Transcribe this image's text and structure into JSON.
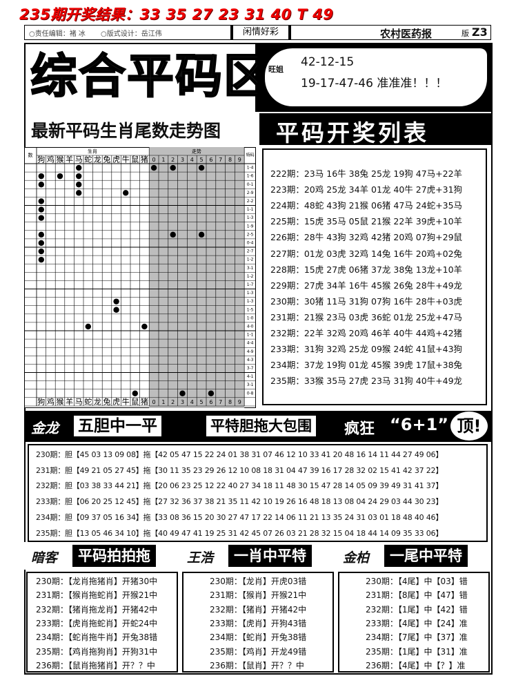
{
  "header": {
    "result": "235期开奖结果：33 35 27 23 31 40 T 49",
    "editor": "○责任编辑：褚 冰",
    "designer": "○版式设计：岳江伟",
    "column": "闲情好彩",
    "paper": "农村医药报",
    "page_label": "版",
    "page": "Z3"
  },
  "title": {
    "main": "综合平码区",
    "author": "旺姐",
    "line1": "42-12-15",
    "line2": "19-17-47-46 准准准！！！"
  },
  "trend": {
    "title": "最新平码生肖尾数走势图",
    "corner": "数",
    "zodiac_header": "生肖",
    "digit_header": "走势",
    "special_header": "特码",
    "columns": [
      "狗",
      "鸡",
      "猴",
      "羊",
      "马",
      "蛇",
      "龙",
      "兔",
      "虎",
      "牛",
      "鼠",
      "猪",
      "0",
      "1",
      "2",
      "3",
      "4",
      "5",
      "6",
      "7",
      "8",
      "9"
    ],
    "rows": [
      {
        "label": "1-4",
        "dots": [
          4,
          12,
          14,
          17
        ]
      },
      {
        "label": "1-6",
        "dots": [
          0,
          2,
          4
        ]
      },
      {
        "label": "0-1",
        "dots": [
          0,
          4
        ]
      },
      {
        "label": "2-9",
        "dots": [
          4,
          9
        ]
      },
      {
        "label": "2-2",
        "dots": [
          0
        ]
      },
      {
        "label": "1-1",
        "dots": [
          0
        ]
      },
      {
        "label": "1-3",
        "dots": [
          0
        ]
      },
      {
        "label": "1-9",
        "dots": []
      },
      {
        "label": "2-5",
        "dots": [
          0,
          14,
          17
        ]
      },
      {
        "label": "0-4",
        "dots": [
          0
        ]
      },
      {
        "label": "2-7",
        "dots": [
          0
        ]
      },
      {
        "label": "1-2",
        "dots": [
          0
        ]
      },
      {
        "label": "3-1",
        "dots": []
      },
      {
        "label": "1-2",
        "dots": []
      },
      {
        "label": "1-7",
        "dots": []
      },
      {
        "label": "1-3",
        "dots": []
      },
      {
        "label": "1-3",
        "dots": [
          8
        ]
      },
      {
        "label": "1-5",
        "dots": [
          8
        ]
      },
      {
        "label": "1-0",
        "dots": []
      },
      {
        "label": "4-0",
        "dots": [
          5,
          11
        ]
      },
      {
        "label": "1-1",
        "dots": []
      },
      {
        "label": "4-4",
        "dots": []
      },
      {
        "label": "4-9",
        "dots": []
      },
      {
        "label": "4-3",
        "dots": []
      },
      {
        "label": "3-7",
        "dots": []
      },
      {
        "label": "4-1",
        "dots": []
      },
      {
        "label": "3-1",
        "dots": []
      },
      {
        "label": "0-8",
        "dots": [
          10,
          15,
          18
        ]
      }
    ]
  },
  "draw_list": {
    "title": "平码开奖列表",
    "rows": [
      "222期：23马 16牛 38兔 25龙 19狗 47马+22羊",
      "223期：20鸡 25龙 34羊 01龙 40牛 27虎+31狗",
      "224期：48蛇 43狗 21猴 06猪 47马 24蛇+35马",
      "225期：15虎 35马 05鼠 21猴 22羊 39虎+10羊",
      "226期：28牛 43狗 32鸡 42猪 20鸡 07狗+29鼠",
      "227期：01龙 03虎 32鸡 14兔 16牛 20鸡+02兔",
      "228期：15虎 27虎 06猪 37龙 38兔 13龙+10羊",
      "229期：27虎 34羊 16牛 45猴 26兔 28牛+49龙",
      "230期：30猪 11马 31狗 07狗 16牛 28牛+03虎",
      "231期：21猴 23马 03虎 36蛇 01龙 25龙+47马",
      "232期：22羊 32鸡 20鸡 46羊 40牛 44鸡+42猪",
      "233期：31狗 32鸡 25龙 09猴 24蛇 41鼠+43狗",
      "234期：37龙 19狗 01龙 45猴 39虎 17鼠+38兔",
      "235期：33猴 35马 27虎 23马 31狗 40牛+49龙"
    ]
  },
  "banner": {
    "author": "金龙",
    "name": "五胆中一平",
    "slogan": "平特胆拖大包围",
    "crazy": "疯狂",
    "offer": "“6+1”",
    "top": "顶!",
    "rows": [
      "230期：胆【45 03 13 09 08】拖【42 05 47 15 22 24 01 38 31 07 46 12 10 33 41 20 48 16 14 11 44 27 49 06】",
      "231期：胆【49 21 05 27 45】拖【30 11 35 23 29 26 12 10 08 18 31 04 47 39 16 17 28 32 02 15 41 42 37 22】",
      "232期：胆【03 38 33 44 21】拖【20 06 23 25 12 22 40 27 34 18 11 48 30 15 47 28 14 05 09 39 49 31 41 37】",
      "233期：胆【06 20 25 12 45】拖【27 32 36 37 38 21 35 11 42 10 19 26 16 48 18 13 08 04 24 29 03 44 30 23】",
      "234期：胆【09 37 05 16 34】拖【33 08 36 15 20 30 27 47 17 22 14 06 11 21 13 35 24 31 03 01 18 48 40 46】",
      "235期：胆【13 05 46 34 10】拖【40 49 47 41 19 25 31 42 45 07 26 03 21 28 32 15 04 18 44 14 09 35 33 06】"
    ]
  },
  "columns": [
    {
      "author": "暗客",
      "name": "平码拍拍拖",
      "rows": [
        "230期：【龙肖拖猪肖】开猪30中",
        "231期：【猴肖拖蛇肖】开猴21中",
        "232期：【猪肖拖龙肖】开猪42中",
        "233期：【虎肖拖蛇肖】开蛇24中",
        "234期：【蛇肖拖牛肖】开兔38错",
        "235期：【鸡肖拖狗肖】开狗31中",
        "236期：【鼠肖拖猪肖】开？？中"
      ]
    },
    {
      "author": "王浩",
      "name": "一肖中平特",
      "rows": [
        "230期：【龙肖】开虎03错",
        "231期：【猴肖】开猴21中",
        "232期：【猪肖】开猪42中",
        "233期：【虎肖】开狗43错",
        "234期：【蛇肖】开兔38错",
        "235期：【鸡肖】开龙49错",
        "236期：【鼠肖】开？？中"
      ]
    },
    {
      "author": "金柏",
      "name": "一尾中平特",
      "rows": [
        "230期：【4尾】中【03】错",
        "231期：【8尾】中【47】错",
        "232期：【1尾】中【42】错",
        "233期：【4尾】中【24】准",
        "234期：【7尾】中【37】准",
        "235期：【1尾】中【31】准",
        "236期：【4尾】中【？】准"
      ]
    }
  ]
}
